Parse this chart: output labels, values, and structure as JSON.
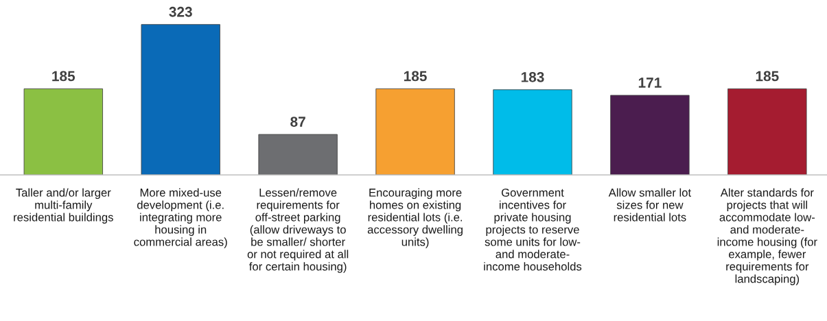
{
  "chart_data": {
    "type": "bar",
    "categories": [
      "Taller and/or larger\nmulti-family\nresidential buildings",
      "More mixed-use\ndevelopment (i.e.\nintegrating more\nhousing in\ncommercial areas)",
      "Lessen/remove\nrequirements for\noff-street parking\n(allow driveways to\nbe smaller/ shorter\nor not required at all\nfor certain housing)",
      "Encouraging more\nhomes on existing\nresidential lots (i.e.\naccessory dwelling\nunits)",
      "Government\nincentives for\nprivate housing\nprojects to reserve\nsome units for low-\nand moderate-\nincome households",
      "Allow smaller lot\nsizes for new\nresidential lots",
      "Alter standards for\nprojects that will\naccommodate low-\nand moderate-\nincome housing (for\nexample, fewer\nrequirements for\nlandscaping)"
    ],
    "values": [
      185,
      323,
      87,
      185,
      183,
      171,
      185
    ],
    "colors": [
      "#8bc043",
      "#0a6ab7",
      "#6d6e71",
      "#f6a031",
      "#00bce9",
      "#4b1d4f",
      "#a51c30"
    ],
    "data_labels": true,
    "grid": false,
    "legend": false
  }
}
